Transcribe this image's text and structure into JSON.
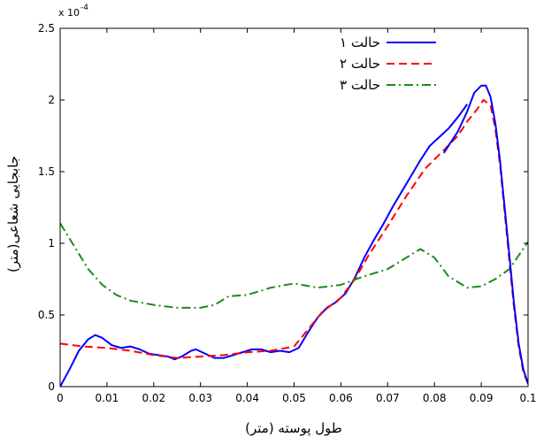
{
  "chart_data": {
    "type": "line",
    "xlabel": "طول پوسته (متر)",
    "ylabel": "جابجایی شعاعی(متر)",
    "y_multiplier_label": "x 10",
    "y_multiplier_exponent": "-4",
    "xlim": [
      0,
      0.1
    ],
    "ylim": [
      0,
      2.5
    ],
    "x_ticks": [
      0,
      0.01,
      0.02,
      0.03,
      0.04,
      0.05,
      0.06,
      0.07,
      0.08,
      0.09,
      0.1
    ],
    "x_tick_labels": [
      "0",
      "0.01",
      "0.02",
      "0.03",
      "0.04",
      "0.05",
      "0.06",
      "0.07",
      "0.08",
      "0.09",
      "0.1"
    ],
    "y_ticks": [
      0,
      0.5,
      1,
      1.5,
      2,
      2.5
    ],
    "y_tick_labels": [
      "0",
      "0.5",
      "1",
      "1.5",
      "2",
      "2.5"
    ],
    "grid": false,
    "legend_position": "top-right",
    "series": [
      {
        "name": "حالت ۱",
        "color": "#0000ff",
        "line_style": "solid",
        "x": [
          0,
          0.002,
          0.004,
          0.006,
          0.0075,
          0.009,
          0.011,
          0.013,
          0.015,
          0.017,
          0.019,
          0.021,
          0.023,
          0.0245,
          0.026,
          0.028,
          0.029,
          0.031,
          0.033,
          0.035,
          0.037,
          0.039,
          0.041,
          0.043,
          0.045,
          0.047,
          0.049,
          0.051,
          0.053,
          0.055,
          0.057,
          0.059,
          0.061,
          0.063,
          0.065,
          0.067,
          0.069,
          0.071,
          0.073,
          0.075,
          0.077,
          0.079,
          0.081,
          0.083,
          0.085,
          0.087
        ],
        "y": [
          0.0,
          0.12,
          0.25,
          0.33,
          0.36,
          0.34,
          0.29,
          0.27,
          0.28,
          0.26,
          0.23,
          0.22,
          0.21,
          0.19,
          0.21,
          0.25,
          0.26,
          0.23,
          0.2,
          0.2,
          0.22,
          0.24,
          0.26,
          0.26,
          0.24,
          0.25,
          0.24,
          0.27,
          0.38,
          0.48,
          0.55,
          0.59,
          0.65,
          0.76,
          0.9,
          1.02,
          1.13,
          1.25,
          1.36,
          1.47,
          1.58,
          1.68,
          1.74,
          1.8,
          1.88,
          1.97
        ]
      },
      {
        "name": "حالت ۲",
        "color": "#ff0000",
        "line_style": "dashed",
        "x": [
          0,
          0.005,
          0.01,
          0.015,
          0.02,
          0.025,
          0.03,
          0.035,
          0.04,
          0.045,
          0.05,
          0.053,
          0.056,
          0.06,
          0.063,
          0.066,
          0.07,
          0.074,
          0.078,
          0.082,
          0.085,
          0.087,
          0.089,
          0.0905,
          0.092,
          0.093,
          0.094,
          0.095,
          0.096,
          0.097,
          0.098,
          0.099,
          0.1
        ],
        "y": [
          0.3,
          0.28,
          0.27,
          0.25,
          0.22,
          0.2,
          0.21,
          0.22,
          0.24,
          0.25,
          0.28,
          0.4,
          0.52,
          0.62,
          0.75,
          0.92,
          1.12,
          1.33,
          1.52,
          1.65,
          1.75,
          1.85,
          1.93,
          2.0,
          1.96,
          1.8,
          1.55,
          1.22,
          0.88,
          0.55,
          0.28,
          0.1,
          0.02
        ]
      },
      {
        "name": "حالت ۳",
        "color": "#1a8c1a",
        "line_style": "dashdot",
        "x": [
          0,
          0.003,
          0.006,
          0.009,
          0.012,
          0.015,
          0.02,
          0.025,
          0.03,
          0.033,
          0.036,
          0.04,
          0.045,
          0.05,
          0.055,
          0.06,
          0.065,
          0.07,
          0.074,
          0.077,
          0.08,
          0.083,
          0.087,
          0.09,
          0.093,
          0.096,
          0.1
        ],
        "y": [
          1.14,
          0.98,
          0.82,
          0.71,
          0.64,
          0.6,
          0.57,
          0.55,
          0.55,
          0.57,
          0.63,
          0.64,
          0.69,
          0.72,
          0.69,
          0.71,
          0.77,
          0.82,
          0.9,
          0.96,
          0.9,
          0.77,
          0.69,
          0.7,
          0.75,
          0.82,
          1.01
        ]
      },
      {
        "name": "",
        "color": "#0000ff",
        "line_style": "solid",
        "x": [
          0.082,
          0.085,
          0.087,
          0.0885,
          0.09,
          0.091,
          0.092,
          0.093,
          0.094,
          0.095,
          0.096,
          0.097,
          0.098,
          0.099,
          0.1
        ],
        "y": [
          1.63,
          1.78,
          1.92,
          2.05,
          2.1,
          2.1,
          2.02,
          1.84,
          1.58,
          1.25,
          0.92,
          0.58,
          0.3,
          0.12,
          0.02
        ]
      }
    ]
  }
}
